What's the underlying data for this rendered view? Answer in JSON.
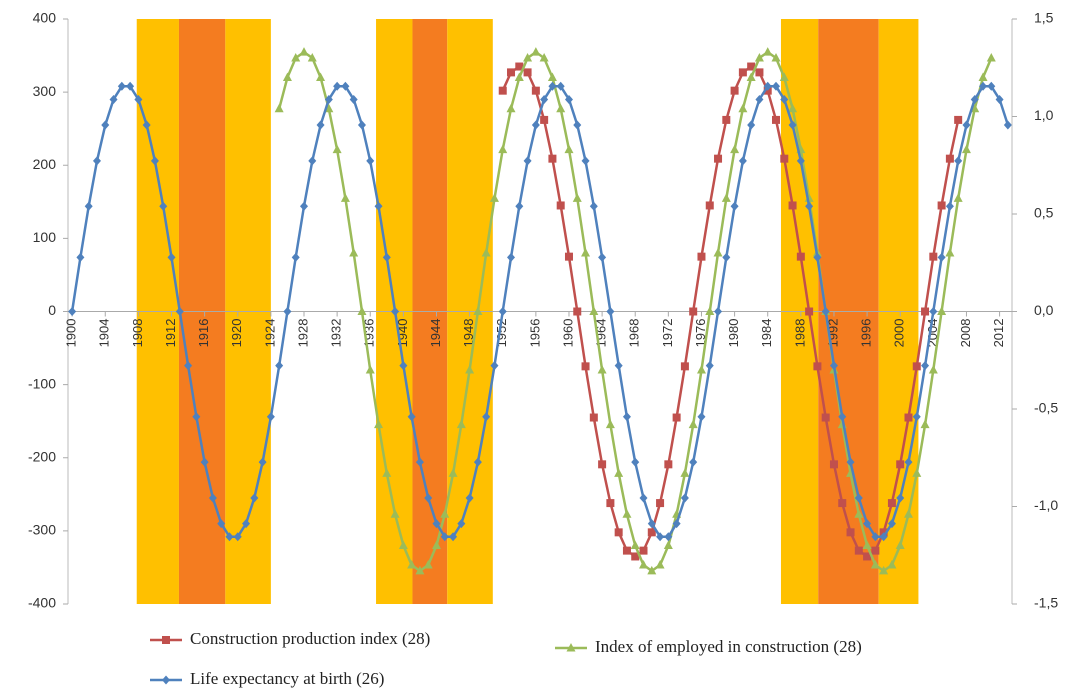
{
  "chart_data": {
    "type": "line",
    "x": [
      1900,
      1901,
      1902,
      1903,
      1904,
      1905,
      1906,
      1907,
      1908,
      1909,
      1910,
      1911,
      1912,
      1913,
      1914,
      1915,
      1916,
      1917,
      1918,
      1919,
      1920,
      1921,
      1922,
      1923,
      1924,
      1925,
      1926,
      1927,
      1928,
      1929,
      1930,
      1931,
      1932,
      1933,
      1934,
      1935,
      1936,
      1937,
      1938,
      1939,
      1940,
      1941,
      1942,
      1943,
      1944,
      1945,
      1946,
      1947,
      1948,
      1949,
      1950,
      1951,
      1952,
      1953,
      1954,
      1955,
      1956,
      1957,
      1958,
      1959,
      1960,
      1961,
      1962,
      1963,
      1964,
      1965,
      1966,
      1967,
      1968,
      1969,
      1970,
      1971,
      1972,
      1973,
      1974,
      1975,
      1976,
      1977,
      1978,
      1979,
      1980,
      1981,
      1982,
      1983,
      1984,
      1985,
      1986,
      1987,
      1988,
      1989,
      1990,
      1991,
      1992,
      1993,
      1994,
      1995,
      1996,
      1997,
      1998,
      1999,
      2000,
      2001,
      2002,
      2003,
      2004,
      2005,
      2006,
      2007,
      2008,
      2009,
      2010,
      2011,
      2012,
      2013
    ],
    "series": [
      {
        "name": "Construction production index (28)",
        "color": "#C0504D",
        "marker": "square",
        "values": [
          null,
          null,
          null,
          null,
          null,
          null,
          null,
          null,
          null,
          null,
          null,
          null,
          null,
          null,
          null,
          null,
          null,
          null,
          null,
          null,
          null,
          null,
          null,
          null,
          null,
          null,
          null,
          null,
          null,
          null,
          null,
          null,
          null,
          null,
          null,
          null,
          null,
          null,
          null,
          null,
          null,
          null,
          null,
          null,
          null,
          null,
          null,
          null,
          null,
          null,
          null,
          null,
          302,
          327,
          335,
          327,
          302,
          262,
          209,
          145,
          75,
          0,
          -75,
          -145,
          -209,
          -262,
          -302,
          -327,
          -335,
          -327,
          -302,
          -262,
          -209,
          -145,
          -75,
          0,
          75,
          145,
          209,
          262,
          302,
          327,
          335,
          327,
          302,
          262,
          209,
          145,
          75,
          0,
          -75,
          -145,
          -209,
          -262,
          -302,
          -327,
          -335,
          -327,
          -302,
          -262,
          -209,
          -145,
          -75,
          0,
          75,
          145,
          209,
          262,
          null,
          null,
          null,
          null,
          null,
          null
        ]
      },
      {
        "name": "Index of employed in construction (28)",
        "color": "#9BBB59",
        "marker": "triangle",
        "axis": "y2",
        "values": [
          null,
          null,
          null,
          null,
          null,
          null,
          null,
          null,
          null,
          null,
          null,
          null,
          null,
          null,
          null,
          null,
          null,
          null,
          null,
          null,
          null,
          null,
          null,
          null,
          null,
          1.04,
          1.2,
          1.3,
          1.33,
          1.3,
          1.2,
          1.04,
          0.83,
          0.58,
          0.3,
          0,
          -0.3,
          -0.58,
          -0.83,
          -1.04,
          -1.2,
          -1.3,
          -1.33,
          -1.3,
          -1.2,
          -1.04,
          -0.83,
          -0.58,
          -0.3,
          0,
          0.3,
          0.58,
          0.83,
          1.04,
          1.2,
          1.3,
          1.33,
          1.3,
          1.2,
          1.04,
          0.83,
          0.58,
          0.3,
          0,
          -0.3,
          -0.58,
          -0.83,
          -1.04,
          -1.2,
          -1.3,
          -1.33,
          -1.3,
          -1.2,
          -1.04,
          -0.83,
          -0.58,
          -0.3,
          0,
          0.3,
          0.58,
          0.83,
          1.04,
          1.2,
          1.3,
          1.33,
          1.3,
          1.2,
          1.04,
          0.83,
          0.58,
          0.3,
          0,
          -0.3,
          -0.58,
          -0.83,
          -1.04,
          -1.2,
          -1.3,
          -1.33,
          -1.3,
          -1.2,
          -1.04,
          -0.83,
          -0.58,
          -0.3,
          0,
          0.3,
          0.58,
          0.83,
          1.04,
          1.2,
          1.3,
          null,
          null
        ]
      },
      {
        "name": "Life expectancy at birth (26)",
        "color": "#4F81BD",
        "marker": "diamond",
        "values": [
          0,
          74,
          144,
          206,
          255,
          290,
          308,
          308,
          290,
          255,
          206,
          144,
          74,
          0,
          -74,
          -144,
          -206,
          -255,
          -290,
          -308,
          -308,
          -290,
          -255,
          -206,
          -144,
          -74,
          0,
          74,
          144,
          206,
          255,
          290,
          308,
          308,
          290,
          255,
          206,
          144,
          74,
          0,
          -74,
          -144,
          -206,
          -255,
          -290,
          -308,
          -308,
          -290,
          -255,
          -206,
          -144,
          -74,
          0,
          74,
          144,
          206,
          255,
          290,
          308,
          308,
          290,
          255,
          206,
          144,
          74,
          0,
          -74,
          -144,
          -206,
          -255,
          -290,
          -308,
          -308,
          -290,
          -255,
          -206,
          -144,
          -74,
          0,
          74,
          144,
          206,
          255,
          290,
          308,
          308,
          290,
          255,
          206,
          144,
          74,
          0,
          -74,
          -144,
          -206,
          -255,
          -290,
          -308,
          -308,
          -290,
          -255,
          -206,
          -144,
          -74,
          0,
          74,
          144,
          206,
          255,
          290,
          308,
          308,
          290,
          255
        ]
      }
    ],
    "bands": [
      {
        "x0": 1907.8,
        "x1": 1912.9,
        "color": "#FFC000"
      },
      {
        "x0": 1912.9,
        "x1": 1918.5,
        "color": "#F47C20"
      },
      {
        "x0": 1918.5,
        "x1": 1924,
        "color": "#FFC000"
      },
      {
        "x0": 1936.7,
        "x1": 1941.1,
        "color": "#FFC000"
      },
      {
        "x0": 1941.1,
        "x1": 1945.3,
        "color": "#F47C20"
      },
      {
        "x0": 1945.3,
        "x1": 1950.8,
        "color": "#FFC000"
      },
      {
        "x0": 1985.6,
        "x1": 1990.1,
        "color": "#FFC000"
      },
      {
        "x0": 1990.1,
        "x1": 1997.4,
        "color": "#F47C20"
      },
      {
        "x0": 1997.4,
        "x1": 2002.2,
        "color": "#FFC000"
      }
    ],
    "xlim": [
      1899.5,
      2013.5
    ],
    "xticks": [
      1900,
      1904,
      1908,
      1912,
      1916,
      1920,
      1924,
      1928,
      1932,
      1936,
      1940,
      1944,
      1948,
      1952,
      1956,
      1960,
      1964,
      1968,
      1972,
      1976,
      1980,
      1984,
      1988,
      1992,
      1996,
      2000,
      2004,
      2008,
      2012
    ],
    "ylim": [
      -400,
      400
    ],
    "yticks": [
      -400,
      -300,
      -200,
      -100,
      0,
      100,
      200,
      300,
      400
    ],
    "y2lim": [
      -1.5,
      1.5
    ],
    "y2ticks": [
      {
        "value": 1.5,
        "label": "1,5"
      },
      {
        "value": 1,
        "label": "1,0"
      },
      {
        "value": 0.5,
        "label": "0,5"
      },
      {
        "value": 0,
        "label": "0,0"
      },
      {
        "value": -0.5,
        "label": "-0,5"
      },
      {
        "value": -1,
        "label": "-1,0"
      },
      {
        "value": -1.5,
        "label": "-1,5"
      }
    ]
  }
}
